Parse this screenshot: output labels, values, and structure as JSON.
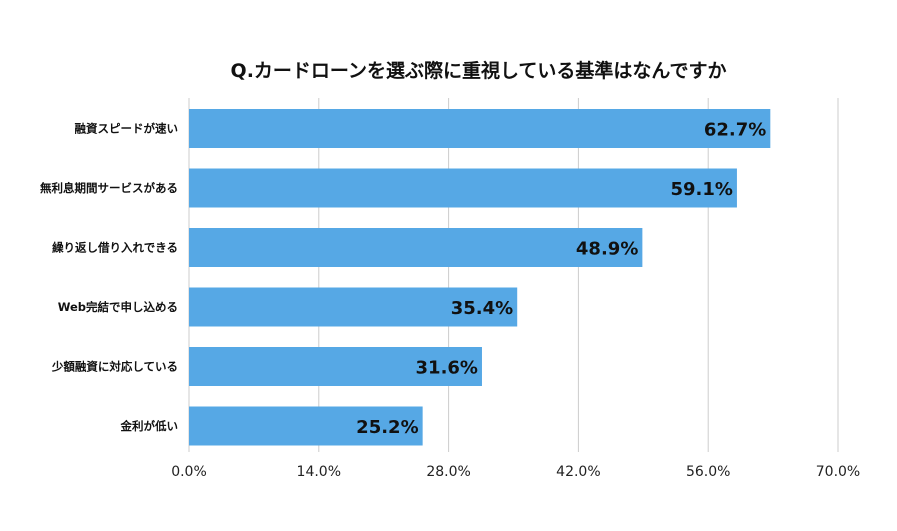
{
  "chart_data": {
    "type": "bar",
    "orientation": "horizontal",
    "title": "Q.カードローンを選ぶ際に重視している基準はなんですか",
    "categories": [
      "融資スピードが速い",
      "無利息期間サービスがある",
      "繰り返し借り入れできる",
      "Web完結で申し込める",
      "少額融資に対応している",
      "金利が低い"
    ],
    "values": [
      62.7,
      59.1,
      48.9,
      35.4,
      31.6,
      25.2
    ],
    "data_labels": [
      "62.7%",
      "59.1%",
      "48.9%",
      "35.4%",
      "31.6%",
      "25.2%"
    ],
    "xlim": [
      0,
      70
    ],
    "x_ticks": [
      0,
      14,
      28,
      42,
      56,
      70
    ],
    "x_tick_labels": [
      "0.0%",
      "14.0%",
      "28.0%",
      "42.0%",
      "56.0%",
      "70.0%"
    ],
    "grid": true,
    "legend": "none",
    "bar_color": "#56A8E5",
    "grid_color": "#CCCCCC"
  }
}
